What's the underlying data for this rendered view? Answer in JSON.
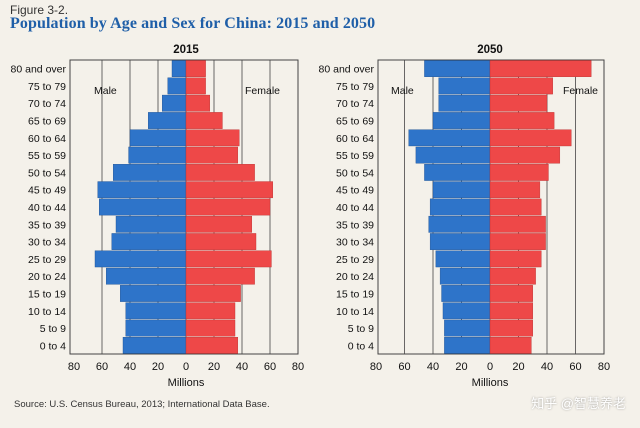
{
  "figure_label": "Figure 3-2.",
  "title": "Population by Age and Sex for China: 2015 and 2050",
  "source": "Source: U.S. Census Bureau, 2013; International Data Base.",
  "watermark": "知乎 @智慧养老",
  "colors": {
    "male": "#2e74c9",
    "female": "#ee4848",
    "grid": "#444444",
    "title": "#1f5fa8"
  },
  "chart_data": [
    {
      "type": "bar",
      "orientation": "horizontal-pyramid",
      "title": "2015",
      "xlabel": "Millions",
      "xlim": [
        -80,
        80
      ],
      "ticks": [
        "80",
        "60",
        "40",
        "20",
        "0",
        "20",
        "40",
        "60",
        "80"
      ],
      "grid": true,
      "legend_labels": {
        "left": "Male",
        "right": "Female"
      },
      "categories": [
        "80 and over",
        "75 to 79",
        "70 to 74",
        "65 to 69",
        "60 to 64",
        "55 to 59",
        "50 to 54",
        "45 to 49",
        "40 to 44",
        "35 to 39",
        "30 to 34",
        "25 to 29",
        "20 to 24",
        "15 to 19",
        "10 to 14",
        "5 to 9",
        "0 to 4"
      ],
      "series": [
        {
          "name": "Male",
          "values": [
            10,
            13,
            17,
            27,
            40,
            41,
            52,
            63,
            62,
            50,
            53,
            65,
            57,
            47,
            43,
            43,
            45
          ]
        },
        {
          "name": "Female",
          "values": [
            14,
            14,
            17,
            26,
            38,
            37,
            49,
            62,
            60,
            47,
            50,
            61,
            49,
            39,
            35,
            35,
            37
          ]
        }
      ]
    },
    {
      "type": "bar",
      "orientation": "horizontal-pyramid",
      "title": "2050",
      "xlabel": "Millions",
      "xlim": [
        -80,
        80
      ],
      "ticks": [
        "80",
        "60",
        "40",
        "20",
        "0",
        "20",
        "40",
        "60",
        "80"
      ],
      "grid": true,
      "legend_labels": {
        "left": "Male",
        "right": "Female"
      },
      "categories": [
        "80 and over",
        "75 to 79",
        "70 to 74",
        "65 to 69",
        "60 to 64",
        "55 to 59",
        "50 to 54",
        "45 to 49",
        "40 to 44",
        "35 to 39",
        "30 to 34",
        "25 to 29",
        "20 to 24",
        "15 to 19",
        "10 to 14",
        "5 to 9",
        "0 to 4"
      ],
      "series": [
        {
          "name": "Male",
          "values": [
            46,
            36,
            36,
            40,
            57,
            52,
            46,
            40,
            42,
            43,
            42,
            38,
            35,
            34,
            33,
            32,
            32
          ]
        },
        {
          "name": "Female",
          "values": [
            71,
            44,
            40,
            45,
            57,
            49,
            41,
            35,
            36,
            39,
            39,
            36,
            32,
            30,
            30,
            30,
            29
          ]
        }
      ]
    }
  ]
}
